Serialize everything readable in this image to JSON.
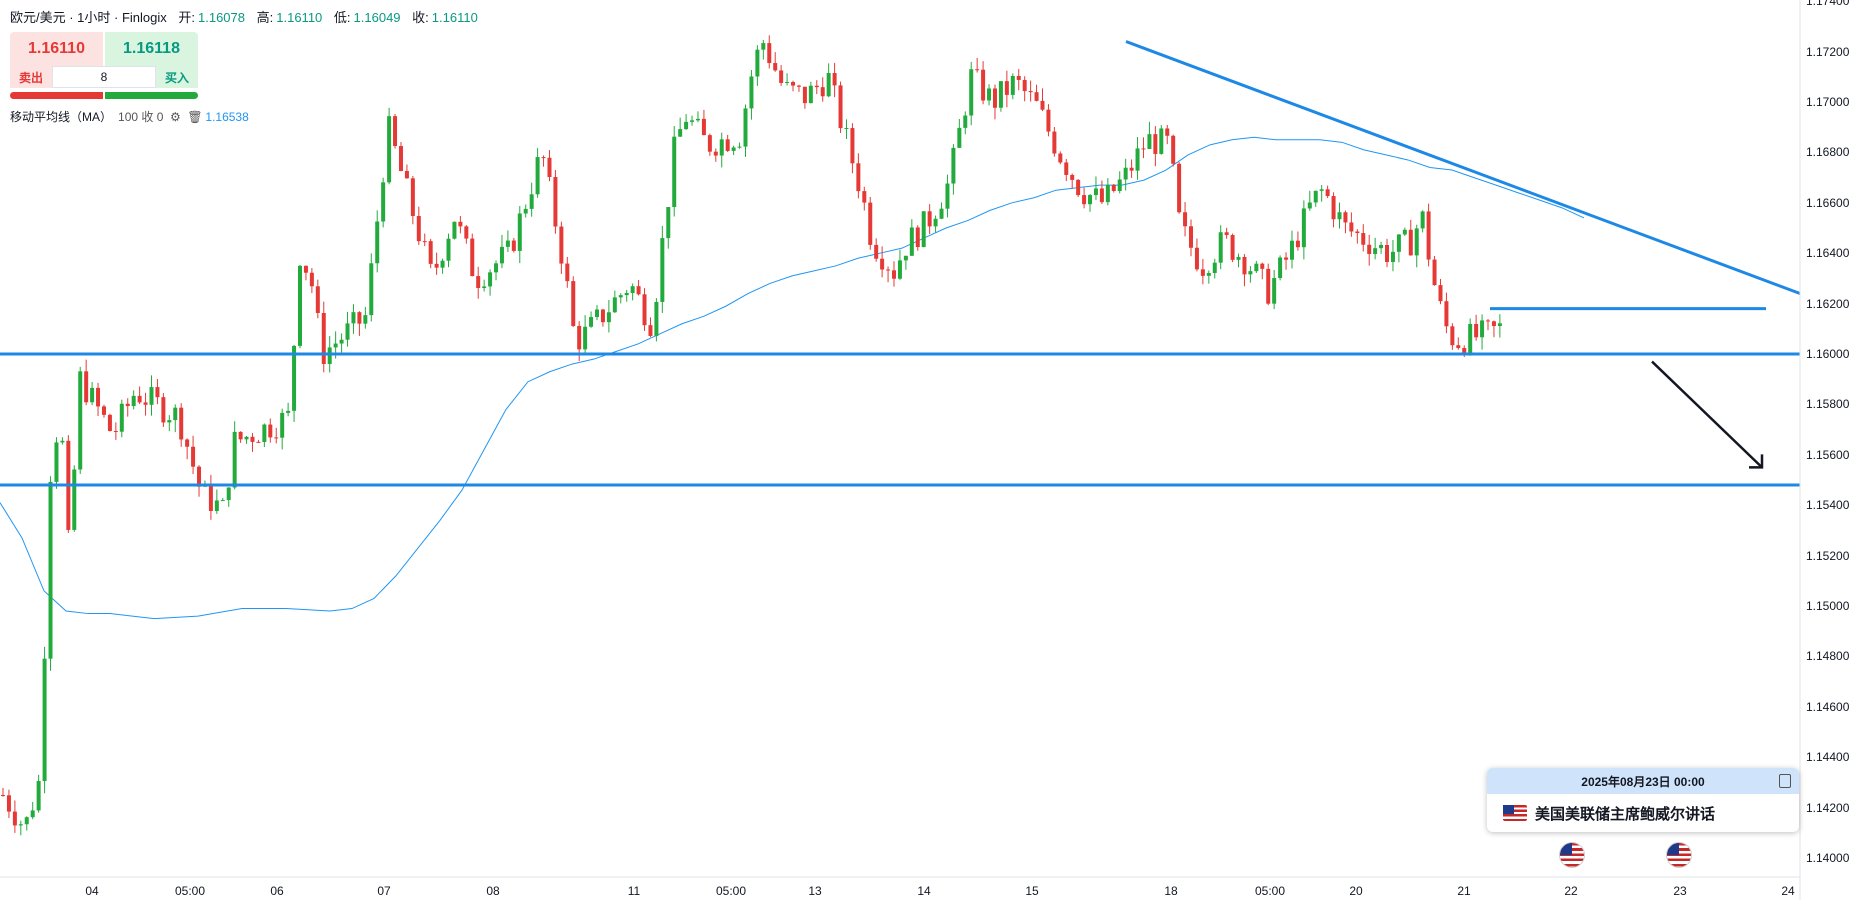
{
  "header": {
    "symbol": "欧元/美元 · 1小时 · Finlogix",
    "open_label": "开:",
    "open": "1.16078",
    "high_label": "高:",
    "high": "1.16110",
    "low_label": "低:",
    "low": "1.16049",
    "close_label": "收:",
    "close": "1.16110"
  },
  "trade_panel": {
    "sell_price": "1.16110",
    "buy_price": "1.16118",
    "sell_label": "卖出",
    "buy_label": "买入",
    "quantity": "8"
  },
  "indicator": {
    "name": "移动平均线（MA）",
    "params": "100 收 0",
    "value": "1.16538",
    "icons": [
      "settings-gear-icon",
      "trash-icon"
    ]
  },
  "event": {
    "datetime": "2025年08月23日 00:00",
    "title": "美国美联储主席鲍威尔讲话",
    "icon": "us-flag-icon"
  },
  "colors": {
    "up": "#22ab3c",
    "down": "#e53935",
    "ma_line": "#2196f3",
    "drawn_lines": "#1e88e5",
    "arrow": "#131722"
  },
  "chart_data": {
    "type": "candlestick",
    "symbol": "EUR/USD",
    "timeframe": "1H",
    "y_axis": {
      "range": [
        1.1395,
        1.1745
      ],
      "ticks": [
        "1.17400",
        "1.17200",
        "1.17000",
        "1.16800",
        "1.16600",
        "1.16400",
        "1.16200",
        "1.16000",
        "1.15800",
        "1.15600",
        "1.15400",
        "1.15200",
        "1.15000",
        "1.14800",
        "1.14600",
        "1.14400",
        "1.14200",
        "1.14000"
      ]
    },
    "x_axis": {
      "ticks": [
        "04",
        "05:00",
        "06",
        "07",
        "08",
        "11",
        "05:00",
        "13",
        "14",
        "15",
        "18",
        "05:00",
        "20",
        "21",
        "22",
        "23",
        "24"
      ]
    },
    "moving_average": {
      "period": 100,
      "source": "close",
      "points": [
        [
          0,
          1.1541
        ],
        [
          1,
          1.1527
        ],
        [
          2,
          1.1506
        ],
        [
          3,
          1.1498
        ],
        [
          4,
          1.1497
        ],
        [
          5,
          1.1497
        ],
        [
          7,
          1.1495
        ],
        [
          9,
          1.1496
        ],
        [
          11,
          1.1499
        ],
        [
          13,
          1.1499
        ],
        [
          15,
          1.1498
        ],
        [
          16,
          1.1499
        ],
        [
          17,
          1.1503
        ],
        [
          18,
          1.1512
        ],
        [
          19,
          1.1523
        ],
        [
          20,
          1.1534
        ],
        [
          21,
          1.1546
        ],
        [
          22,
          1.1562
        ],
        [
          23,
          1.1578
        ],
        [
          24,
          1.1589
        ],
        [
          25,
          1.1593
        ],
        [
          26,
          1.1596
        ],
        [
          27,
          1.1598
        ],
        [
          28,
          1.1601
        ],
        [
          29,
          1.1604
        ],
        [
          30,
          1.1608
        ],
        [
          31,
          1.1612
        ],
        [
          32,
          1.1615
        ],
        [
          33,
          1.1619
        ],
        [
          34,
          1.1624
        ],
        [
          35,
          1.1628
        ],
        [
          36,
          1.1631
        ],
        [
          37,
          1.1633
        ],
        [
          38,
          1.1635
        ],
        [
          39,
          1.1638
        ],
        [
          40,
          1.164
        ],
        [
          41,
          1.1642
        ],
        [
          42,
          1.1646
        ],
        [
          43,
          1.165
        ],
        [
          44,
          1.1653
        ],
        [
          45,
          1.1657
        ],
        [
          46,
          1.166
        ],
        [
          47,
          1.1662
        ],
        [
          48,
          1.1665
        ],
        [
          49,
          1.1666
        ],
        [
          50,
          1.1667
        ],
        [
          51,
          1.1667
        ],
        [
          52,
          1.1669
        ],
        [
          53,
          1.1673
        ],
        [
          54,
          1.1679
        ],
        [
          55,
          1.1683
        ],
        [
          56,
          1.1685
        ],
        [
          57,
          1.1686
        ],
        [
          58,
          1.1685
        ],
        [
          59,
          1.1685
        ],
        [
          60,
          1.1685
        ],
        [
          61,
          1.1684
        ],
        [
          62,
          1.1681
        ],
        [
          63,
          1.1679
        ],
        [
          64,
          1.1677
        ],
        [
          65,
          1.1674
        ],
        [
          66,
          1.1673
        ],
        [
          67,
          1.167
        ],
        [
          68,
          1.1667
        ],
        [
          69,
          1.1664
        ],
        [
          70,
          1.1661
        ],
        [
          71,
          1.1658
        ],
        [
          72,
          1.1654
        ]
      ]
    },
    "drawings": {
      "support_levels": [
        1.16,
        1.1548
      ],
      "resistance_level": 1.1618,
      "trendline": [
        [
          34.5,
          1.1724
        ],
        [
          90,
          1.1625
        ]
      ],
      "arrow": [
        [
          73,
          1.1597
        ],
        [
          78,
          1.1555
        ]
      ]
    }
  }
}
